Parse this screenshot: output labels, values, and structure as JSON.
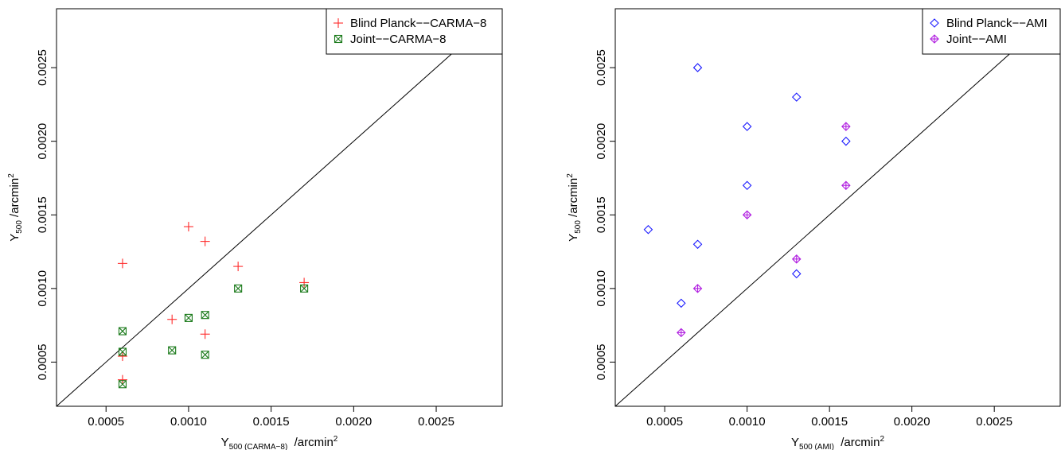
{
  "chart_data": [
    {
      "type": "scatter",
      "xlabel_main": "Y",
      "xlabel_sub": "500 (CARMA−8)",
      "xlabel_unit": "/arcmin",
      "xlabel_exp": "2",
      "ylabel_main": "Y",
      "ylabel_sub": "500",
      "ylabel_unit": "/arcmin",
      "ylabel_exp": "2",
      "xlim": [
        0.0002,
        0.0029
      ],
      "ylim": [
        0.0002,
        0.0029
      ],
      "x_ticks": [
        0.0005,
        0.001,
        0.0015,
        0.002,
        0.0025
      ],
      "x_tick_labels": [
        "0.0005",
        "0.0010",
        "0.0015",
        "0.0020",
        "0.0025"
      ],
      "y_ticks": [
        0.0005,
        0.001,
        0.0015,
        0.002,
        0.0025
      ],
      "y_tick_labels": [
        "0.0005",
        "0.0010",
        "0.0015",
        "0.0020",
        "0.0025"
      ],
      "grid": false,
      "identity_line": true,
      "legend_position": "top-right",
      "series": [
        {
          "name": "Blind Planck−−CARMA−8",
          "marker": "plus",
          "color": "#ff2a2a",
          "points": [
            [
              0.0006,
              0.00117
            ],
            [
              0.0006,
              0.00054
            ],
            [
              0.0006,
              0.00038
            ],
            [
              0.0009,
              0.00079
            ],
            [
              0.001,
              0.00142
            ],
            [
              0.0011,
              0.00132
            ],
            [
              0.0011,
              0.00069
            ],
            [
              0.0013,
              0.00115
            ],
            [
              0.0017,
              0.00104
            ]
          ]
        },
        {
          "name": "Joint−−CARMA−8",
          "marker": "boxed-x",
          "color": "#1a7a1a",
          "points": [
            [
              0.0006,
              0.00071
            ],
            [
              0.0006,
              0.00057
            ],
            [
              0.0006,
              0.00035
            ],
            [
              0.0009,
              0.00058
            ],
            [
              0.001,
              0.0008
            ],
            [
              0.0011,
              0.00082
            ],
            [
              0.0011,
              0.00055
            ],
            [
              0.0013,
              0.001
            ],
            [
              0.0017,
              0.001
            ]
          ]
        }
      ]
    },
    {
      "type": "scatter",
      "xlabel_main": "Y",
      "xlabel_sub": "500 (AMI)",
      "xlabel_unit": "/arcmin",
      "xlabel_exp": "2",
      "ylabel_main": "Y",
      "ylabel_sub": "500",
      "ylabel_unit": "/arcmin",
      "ylabel_exp": "2",
      "xlim": [
        0.0002,
        0.0029
      ],
      "ylim": [
        0.0002,
        0.0029
      ],
      "x_ticks": [
        0.0005,
        0.001,
        0.0015,
        0.002,
        0.0025
      ],
      "x_tick_labels": [
        "0.0005",
        "0.0010",
        "0.0015",
        "0.0020",
        "0.0025"
      ],
      "y_ticks": [
        0.0005,
        0.001,
        0.0015,
        0.002,
        0.0025
      ],
      "y_tick_labels": [
        "0.0005",
        "0.0010",
        "0.0015",
        "0.0020",
        "0.0025"
      ],
      "grid": false,
      "identity_line": true,
      "legend_position": "top-right",
      "series": [
        {
          "name": "Blind Planck−−AMI",
          "marker": "diamond",
          "color": "#1a1aff",
          "points": [
            [
              0.0004,
              0.0014
            ],
            [
              0.0006,
              0.0009
            ],
            [
              0.0007,
              0.0025
            ],
            [
              0.0007,
              0.0013
            ],
            [
              0.001,
              0.0021
            ],
            [
              0.001,
              0.0017
            ],
            [
              0.0013,
              0.0023
            ],
            [
              0.0013,
              0.0011
            ],
            [
              0.0016,
              0.002
            ]
          ]
        },
        {
          "name": "Joint−−AMI",
          "marker": "diamond-plus",
          "color": "#b01ee0",
          "points": [
            [
              0.0006,
              0.0007
            ],
            [
              0.0007,
              0.001
            ],
            [
              0.001,
              0.0015
            ],
            [
              0.0013,
              0.0012
            ],
            [
              0.0016,
              0.0021
            ],
            [
              0.0016,
              0.0017
            ]
          ]
        }
      ]
    }
  ]
}
